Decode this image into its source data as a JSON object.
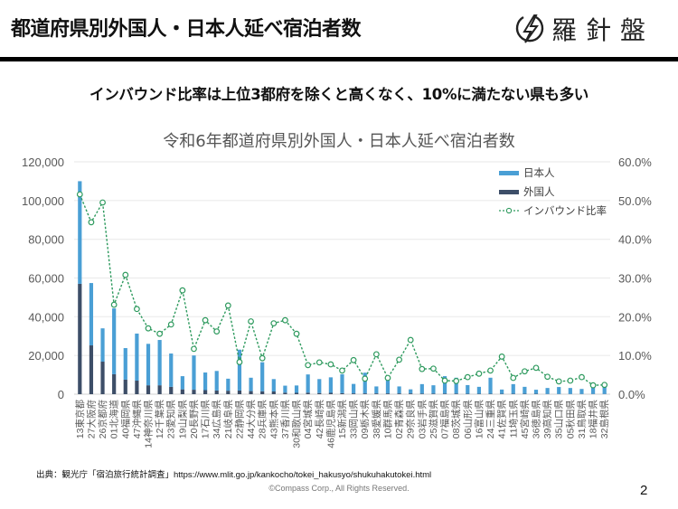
{
  "header": {
    "title": "都道府県別外国人・日本人延べ宿泊者数",
    "logo_text": "羅針盤",
    "logo_icon": "lightning-circle-icon"
  },
  "subtitle": "インバウンド比率は上位3都府を除くと高くなく、10%に満たない県も多い",
  "chart_data": {
    "type": "bar",
    "stacked": true,
    "title": "令和6年都道府県別外国人・日本人延べ宿泊者数",
    "xlabel": "",
    "ylabel": "",
    "ylim": [
      0,
      120000
    ],
    "y2lim": [
      0,
      60
    ],
    "yticks": [
      "0",
      "20,000",
      "40,000",
      "60,000",
      "80,000",
      "100,000",
      "120,000"
    ],
    "y2ticks": [
      "0.0%",
      "10.0%",
      "20.0%",
      "30.0%",
      "40.0%",
      "50.0%",
      "60.0%"
    ],
    "grid": true,
    "legend_position": "top-right",
    "categories": [
      "13東京都",
      "27大阪府",
      "26京都府",
      "01北海道",
      "40福岡県",
      "47沖縄県",
      "14神奈川県",
      "12千葉県",
      "23愛知県",
      "19山梨県",
      "20長野県",
      "17石川県",
      "34広島県",
      "21岐阜県",
      "22静岡県",
      "44大分県",
      "28兵庫県",
      "43熊本県",
      "37香川県",
      "30和歌山県",
      "04宮城県",
      "42長崎県",
      "46鹿児島県",
      "15新潟県",
      "33岡山県",
      "09栃木県",
      "38愛媛県",
      "10群馬県",
      "02青森県",
      "29奈良県",
      "03岩手県",
      "25滋賀県",
      "07福島県",
      "08茨城県",
      "06山形県",
      "16富山県",
      "24三重県",
      "41佐賀県",
      "11埼玉県",
      "45宮崎県",
      "36徳島県",
      "39高知県",
      "35山口県",
      "05秋田県",
      "31鳥取県",
      "18福井県",
      "32島根県"
    ],
    "series": [
      {
        "name": "日本人",
        "type": "bar",
        "color": "#4a9fd5",
        "values": [
          53000,
          32200,
          17200,
          34000,
          16300,
          24300,
          21400,
          23400,
          17200,
          6800,
          17700,
          9100,
          10100,
          6200,
          21100,
          6900,
          15000,
          6400,
          3600,
          3800,
          9400,
          7200,
          8000,
          9800,
          4900,
          10700,
          3600,
          8000,
          3600,
          2100,
          4900,
          4300,
          9000,
          8200,
          4500,
          3600,
          8300,
          2200,
          5000,
          3600,
          2100,
          3100,
          3600,
          3100,
          2600,
          4200,
          4200
        ]
      },
      {
        "name": "外国人",
        "type": "bar",
        "color": "#3d4e68",
        "values": [
          57000,
          25200,
          16800,
          10300,
          7500,
          7000,
          4600,
          4600,
          3800,
          2500,
          2300,
          2100,
          1900,
          1800,
          1900,
          1600,
          1500,
          1400,
          800,
          700,
          800,
          600,
          700,
          500,
          400,
          400,
          400,
          400,
          400,
          400,
          300,
          300,
          300,
          300,
          200,
          200,
          200,
          200,
          200,
          200,
          200,
          100,
          100,
          100,
          100,
          100,
          100
        ]
      },
      {
        "name": "インバウンド比率",
        "type": "line",
        "axis": "right",
        "unit": "%",
        "color": "#2e9a5e",
        "values": [
          51.6,
          44.4,
          49.5,
          23.1,
          30.8,
          22.0,
          17.0,
          15.6,
          18.0,
          26.8,
          11.7,
          19.1,
          16.2,
          22.9,
          8.3,
          18.8,
          9.3,
          18.3,
          19.1,
          15.6,
          7.5,
          8.2,
          7.7,
          6.1,
          8.8,
          4.0,
          10.3,
          4.2,
          8.9,
          14.0,
          6.5,
          6.6,
          3.5,
          3.4,
          4.4,
          5.3,
          6.1,
          9.7,
          4.2,
          5.9,
          6.8,
          4.5,
          3.3,
          3.5,
          4.4,
          2.3,
          2.4
        ]
      }
    ]
  },
  "footer": {
    "source": "出典：観光庁「宿泊旅行統計調査」https://www.mlit.go.jp/kankocho/tokei_hakusyo/shukuhakutokei.html",
    "copyright": "©Compass Corp., All Rights Reserved.",
    "page_number": "2"
  }
}
